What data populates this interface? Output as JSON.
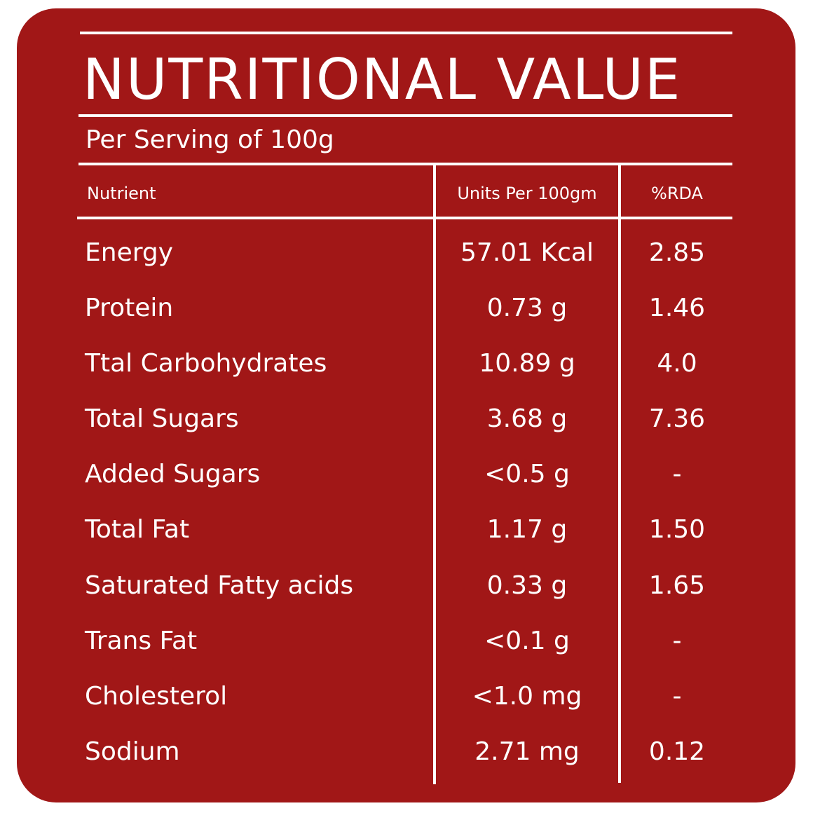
{
  "title": "NUTRITIONAL VALUE",
  "subtitle": "Per Serving of 100g",
  "headers": {
    "nutrient": "Nutrient",
    "units": "Units Per 100gm",
    "rda": "%RDA"
  },
  "rows": [
    {
      "name": "Energy",
      "unit": "57.01  Kcal",
      "rda": "2.85"
    },
    {
      "name": "Protein",
      "unit": "0.73 g",
      "rda": "1.46"
    },
    {
      "name": "Ttal Carbohydrates",
      "unit": "10.89 g",
      "rda": "4.0"
    },
    {
      "name": "Total Sugars",
      "unit": "3.68 g",
      "rda": "7.36"
    },
    {
      "name": "Added Sugars",
      "unit": "<0.5 g",
      "rda": "-"
    },
    {
      "name": "Total Fat",
      "unit": "1.17 g",
      "rda": "1.50"
    },
    {
      "name": "Saturated Fatty acids",
      "unit": "0.33 g",
      "rda": "1.65"
    },
    {
      "name": "Trans Fat",
      "unit": "<0.1 g",
      "rda": "-"
    },
    {
      "name": "Cholesterol",
      "unit": "<1.0 mg",
      "rda": "-"
    },
    {
      "name": "Sodium",
      "unit": "2.71 mg",
      "rda": "0.12"
    }
  ],
  "colors": {
    "background": "#a11717",
    "text": "#ffffff"
  }
}
